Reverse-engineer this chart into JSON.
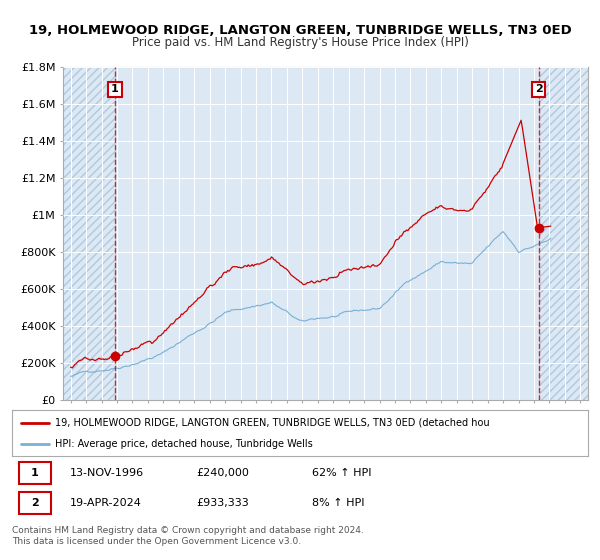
{
  "title": "19, HOLMEWOOD RIDGE, LANGTON GREEN, TUNBRIDGE WELLS, TN3 0ED",
  "subtitle": "Price paid vs. HM Land Registry's House Price Index (HPI)",
  "bg_color": "#dce9f5",
  "hatch_color": "#c8d8e8",
  "red_line_color": "#cc0000",
  "blue_line_color": "#7aafd4",
  "dashed_line_color": "#cc0000",
  "marker1_date": 1996.87,
  "marker1_value": 240000,
  "marker2_date": 2024.3,
  "marker2_value": 933333,
  "xmin": 1993.5,
  "xmax": 2027.5,
  "ymin": 0,
  "ymax": 1800000,
  "yticks": [
    0,
    200000,
    400000,
    600000,
    800000,
    1000000,
    1200000,
    1400000,
    1600000,
    1800000
  ],
  "ytick_labels": [
    "£0",
    "£200K",
    "£400K",
    "£600K",
    "£800K",
    "£1M",
    "£1.2M",
    "£1.4M",
    "£1.6M",
    "£1.8M"
  ],
  "xticks": [
    1994,
    1995,
    1996,
    1997,
    1998,
    1999,
    2000,
    2001,
    2002,
    2003,
    2004,
    2005,
    2006,
    2007,
    2008,
    2009,
    2010,
    2011,
    2012,
    2013,
    2014,
    2015,
    2016,
    2017,
    2018,
    2019,
    2020,
    2021,
    2022,
    2023,
    2024,
    2025,
    2026,
    2027
  ],
  "legend_line1": "19, HOLMEWOOD RIDGE, LANGTON GREEN, TUNBRIDGE WELLS, TN3 0ED (detached hou",
  "legend_line2": "HPI: Average price, detached house, Tunbridge Wells",
  "table_row1_num": "1",
  "table_row1_date": "13-NOV-1996",
  "table_row1_price": "£240,000",
  "table_row1_hpi": "62% ↑ HPI",
  "table_row2_num": "2",
  "table_row2_date": "19-APR-2024",
  "table_row2_price": "£933,333",
  "table_row2_hpi": "8% ↑ HPI",
  "footer1": "Contains HM Land Registry data © Crown copyright and database right 2024.",
  "footer2": "This data is licensed under the Open Government Licence v3.0."
}
